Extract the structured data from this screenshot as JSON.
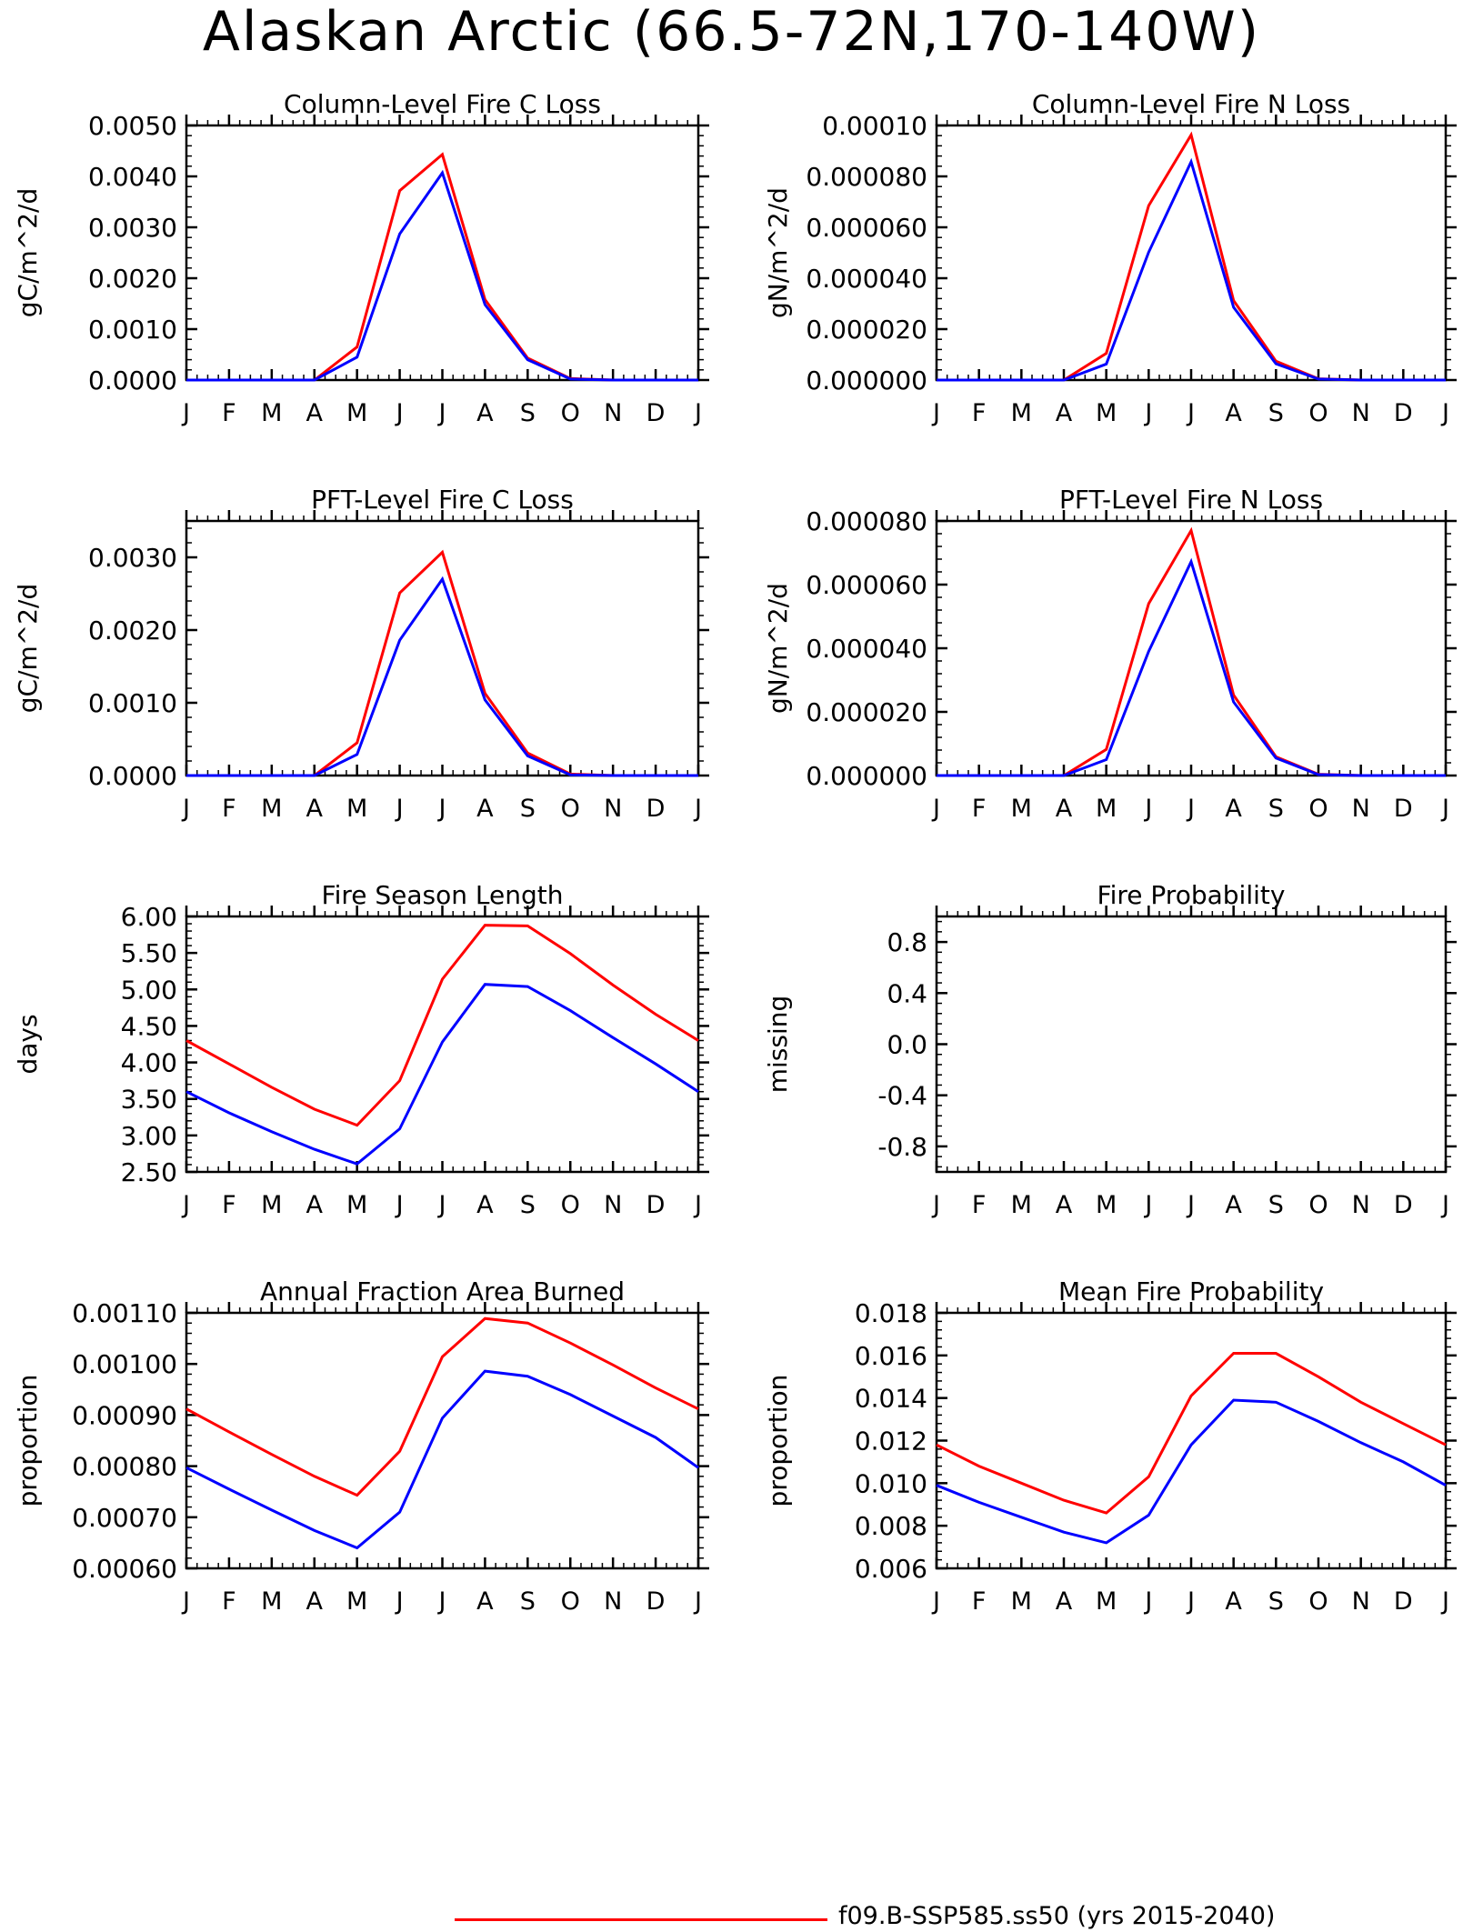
{
  "title": "Alaskan Arctic (66.5-72N,170-140W)",
  "months": [
    "J",
    "F",
    "M",
    "A",
    "M",
    "J",
    "J",
    "A",
    "S",
    "O",
    "N",
    "D",
    "J"
  ],
  "colors": {
    "red": "#ff0000",
    "blue": "#0000ff"
  },
  "legend": {
    "label": "f09.B-SSP585.ss50 (yrs 2015-2040)",
    "color": "#ff0000"
  },
  "chart_data": [
    {
      "type": "line",
      "title": "Column-Level Fire C Loss",
      "ylabel": "gC/m^2/d",
      "ylim": [
        0,
        0.005
      ],
      "yticks": [
        0,
        0.001,
        0.002,
        0.003,
        0.004,
        0.005
      ],
      "ytick_labels": [
        "0.0000",
        "0.0010",
        "0.0020",
        "0.0030",
        "0.0040",
        "0.0050"
      ],
      "series": [
        {
          "color": "#ff0000",
          "values": [
            0,
            0,
            0,
            0,
            0.00065,
            0.00372,
            0.00443,
            0.00158,
            0.00043,
            3e-05,
            0,
            0,
            0
          ]
        },
        {
          "color": "#0000ff",
          "values": [
            0,
            0,
            0,
            0,
            0.00045,
            0.00287,
            0.00407,
            0.00148,
            0.0004,
            2e-05,
            0,
            0,
            0
          ]
        }
      ]
    },
    {
      "type": "line",
      "title": "Column-Level Fire N Loss",
      "ylabel": "gN/m^2/d",
      "ylim": [
        0,
        0.0001
      ],
      "yticks": [
        0,
        2e-05,
        4e-05,
        6e-05,
        8e-05,
        0.0001
      ],
      "ytick_labels": [
        "0.000000",
        "0.000020",
        "0.000040",
        "0.000060",
        "0.000080",
        "0.00010"
      ],
      "series": [
        {
          "color": "#ff0000",
          "values": [
            0,
            0,
            0,
            0,
            1.05e-05,
            6.85e-05,
            9.63e-05,
            3.12e-05,
            7.4e-06,
            5e-07,
            0,
            0,
            0
          ]
        },
        {
          "color": "#0000ff",
          "values": [
            0,
            0,
            0,
            0,
            6.3e-06,
            5.02e-05,
            8.57e-05,
            2.86e-05,
            6.4e-06,
            4e-07,
            0,
            0,
            0
          ]
        }
      ]
    },
    {
      "type": "line",
      "title": "PFT-Level Fire C Loss",
      "ylabel": "gC/m^2/d",
      "ylim": [
        0,
        0.0035
      ],
      "yticks": [
        0,
        0.001,
        0.002,
        0.003
      ],
      "ytick_labels": [
        "0.0000",
        "0.0010",
        "0.0020",
        "0.0030"
      ],
      "series": [
        {
          "color": "#ff0000",
          "values": [
            0,
            0,
            0,
            0,
            0.00045,
            0.00251,
            0.00307,
            0.00113,
            0.00031,
            2e-05,
            0,
            0,
            0
          ]
        },
        {
          "color": "#0000ff",
          "values": [
            0,
            0,
            0,
            0,
            0.00029,
            0.00186,
            0.0027,
            0.00104,
            0.00027,
            1e-05,
            0,
            0,
            0
          ]
        }
      ]
    },
    {
      "type": "line",
      "title": "PFT-Level Fire N Loss",
      "ylabel": "gN/m^2/d",
      "ylim": [
        0,
        8e-05
      ],
      "yticks": [
        0,
        2e-05,
        4e-05,
        6e-05,
        8e-05
      ],
      "ytick_labels": [
        "0.000000",
        "0.000020",
        "0.000040",
        "0.000060",
        "0.000080"
      ],
      "series": [
        {
          "color": "#ff0000",
          "values": [
            0,
            0,
            0,
            0,
            8.2e-06,
            5.4e-05,
            7.7e-05,
            2.53e-05,
            5.9e-06,
            4e-07,
            0,
            0,
            0
          ]
        },
        {
          "color": "#0000ff",
          "values": [
            0,
            0,
            0,
            0,
            5e-06,
            3.9e-05,
            6.72e-05,
            2.31e-05,
            5.5e-06,
            3e-07,
            0,
            0,
            0
          ]
        }
      ]
    },
    {
      "type": "line",
      "title": "Fire Season Length",
      "ylabel": "days",
      "ylim": [
        2.5,
        6.0
      ],
      "yticks": [
        2.5,
        3.0,
        3.5,
        4.0,
        4.5,
        5.0,
        5.5,
        6.0
      ],
      "ytick_labels": [
        "2.50",
        "3.00",
        "3.50",
        "4.00",
        "4.50",
        "5.00",
        "5.50",
        "6.00"
      ],
      "series": [
        {
          "color": "#ff0000",
          "values": [
            4.3,
            3.98,
            3.66,
            3.36,
            3.14,
            3.75,
            5.14,
            5.88,
            5.87,
            5.49,
            5.06,
            4.66,
            4.3
          ]
        },
        {
          "color": "#0000ff",
          "values": [
            3.6,
            3.31,
            3.05,
            2.81,
            2.61,
            3.09,
            4.28,
            5.07,
            5.04,
            4.71,
            4.34,
            3.98,
            3.6
          ]
        }
      ]
    },
    {
      "type": "line",
      "title": "Fire Probability",
      "ylabel": "missing",
      "ylim": [
        -1.0,
        1.0
      ],
      "yticks": [
        -0.8,
        -0.4,
        0.0,
        0.4,
        0.8
      ],
      "ytick_labels": [
        "-0.8",
        "-0.4",
        "0.0",
        "0.4",
        "0.8"
      ],
      "series": []
    },
    {
      "type": "line",
      "title": "Annual Fraction Area Burned",
      "ylabel": "proportion",
      "ylim": [
        0.0006,
        0.0011
      ],
      "yticks": [
        0.0006,
        0.0007,
        0.0008,
        0.0009,
        0.001,
        0.0011
      ],
      "ytick_labels": [
        "0.00060",
        "0.00070",
        "0.00080",
        "0.00090",
        "0.00100",
        "0.00110"
      ],
      "series": [
        {
          "color": "#ff0000",
          "values": [
            0.000912,
            0.000867,
            0.000823,
            0.00078,
            0.000743,
            0.000829,
            0.001014,
            0.001089,
            0.00108,
            0.001041,
            0.000998,
            0.000953,
            0.000912
          ]
        },
        {
          "color": "#0000ff",
          "values": [
            0.000797,
            0.000755,
            0.000714,
            0.000674,
            0.00064,
            0.00071,
            0.000894,
            0.000986,
            0.000976,
            0.00094,
            0.000898,
            0.000856,
            0.000797
          ]
        }
      ]
    },
    {
      "type": "line",
      "title": "Mean Fire Probability",
      "ylabel": "proportion",
      "ylim": [
        0.006,
        0.018
      ],
      "yticks": [
        0.006,
        0.008,
        0.01,
        0.012,
        0.014,
        0.016,
        0.018
      ],
      "ytick_labels": [
        "0.006",
        "0.008",
        "0.010",
        "0.012",
        "0.014",
        "0.016",
        "0.018"
      ],
      "series": [
        {
          "color": "#ff0000",
          "values": [
            0.0118,
            0.0108,
            0.01,
            0.0092,
            0.0086,
            0.0103,
            0.0141,
            0.0161,
            0.0161,
            0.015,
            0.0138,
            0.0128,
            0.0118
          ]
        },
        {
          "color": "#0000ff",
          "values": [
            0.0099,
            0.0091,
            0.0084,
            0.0077,
            0.0072,
            0.0085,
            0.0118,
            0.0139,
            0.0138,
            0.0129,
            0.0119,
            0.011,
            0.0099
          ]
        }
      ]
    }
  ]
}
